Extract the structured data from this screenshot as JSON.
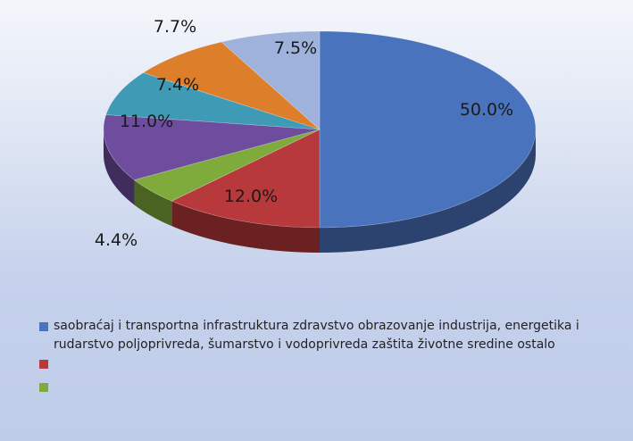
{
  "chart_data": {
    "type": "pie",
    "title": "",
    "categories": [
      "saobraćaj i transportna infrastruktura",
      "zdravstvo",
      "obrazovanje",
      "industrija, energetika i rudarstvo",
      "poljoprivreda, šumarstvo i vodoprivreda",
      "zaštita životne sredine",
      "ostalo"
    ],
    "values": [
      50.0,
      12.0,
      4.4,
      11.0,
      7.4,
      7.7,
      7.5
    ],
    "value_labels": [
      "50.0%",
      "12.0%",
      "4.4%",
      "11.0%",
      "7.4%",
      "7.7%",
      "7.5%"
    ],
    "colors": [
      "#4a73be",
      "#b8393b",
      "#7fab3d",
      "#6e4d9e",
      "#3f9bb5",
      "#dd7e2b",
      "#9eb2dc"
    ],
    "style": "3d",
    "legend": {
      "placement": "bottom",
      "text": "saobraćaj i transportna infrastruktura zdravstvo obrazovanje industrija, energetika i rudarstvo poljoprivreda, šumarstvo i vodoprivreda zaštita životne sredine ostalo",
      "swatch_colors": [
        "#4a73be",
        "#b8393b",
        "#7fab3d"
      ]
    }
  }
}
